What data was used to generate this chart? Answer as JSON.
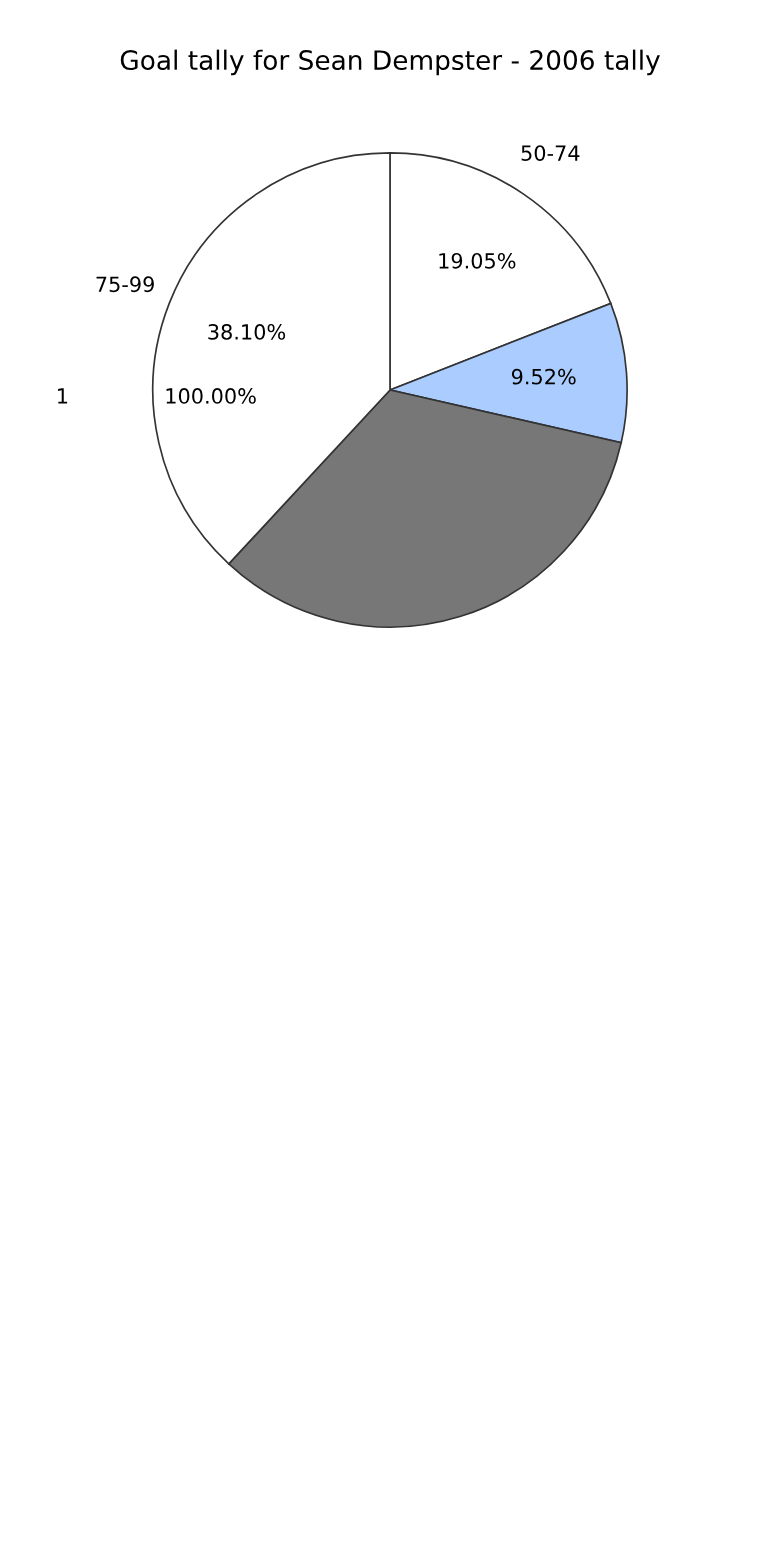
{
  "chart_data": {
    "type": "pie",
    "title": "Goal tally for Sean Dempster - 2006 tally",
    "categories": [
      "50-74",
      null,
      null,
      "75-99"
    ],
    "values": [
      19.05,
      9.52,
      33.33,
      38.1
    ],
    "value_labels": [
      "19.05%",
      "9.52%",
      null,
      "38.10%"
    ],
    "colors": [
      "#ffffff",
      "#aaccff",
      "#777777",
      "#ffffff"
    ],
    "annotations": [
      "1",
      "100.00%"
    ]
  }
}
